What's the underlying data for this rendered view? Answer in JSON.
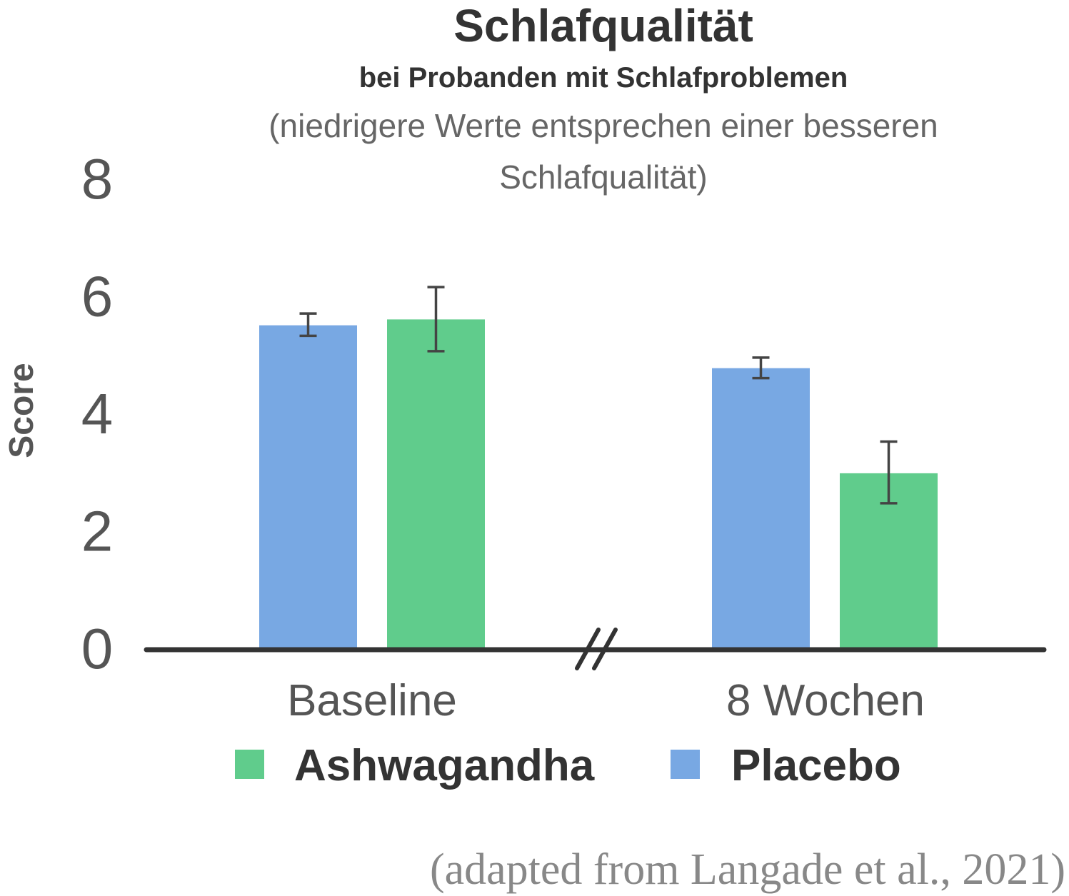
{
  "chart_data": {
    "type": "bar",
    "title": "Schlafqualität",
    "subtitle": "bei Probanden mit Schlafproblemen",
    "note_line1": "(niedrigere Werte entsprechen einer besseren",
    "note_line2": "Schlafqualität)",
    "xlabel": "",
    "ylabel": "Score",
    "ylim": [
      0,
      8
    ],
    "yticks": [
      "0",
      "2",
      "4",
      "6",
      "8"
    ],
    "ytick_values": [
      0,
      2,
      4,
      6,
      8
    ],
    "categories": [
      "Baseline",
      "8 Wochen"
    ],
    "series": [
      {
        "name": "Placebo",
        "color": "#78A8E3",
        "values": [
          5.5,
          4.77
        ],
        "err_low": [
          5.32,
          4.6
        ],
        "err_high": [
          5.7,
          4.95
        ]
      },
      {
        "name": "Ashwagandha",
        "color": "#60CC8C",
        "values": [
          5.6,
          2.98
        ],
        "err_low": [
          5.06,
          2.47
        ],
        "err_high": [
          6.15,
          3.52
        ]
      }
    ],
    "legend": [
      {
        "label": "Ashwagandha",
        "color": "#60CC8C"
      },
      {
        "label": "Placebo",
        "color": "#78A8E3"
      }
    ],
    "legend_position": "bottom",
    "axis_break": true,
    "grid": false,
    "source": "(adapted from Langade et al., 2021)"
  }
}
